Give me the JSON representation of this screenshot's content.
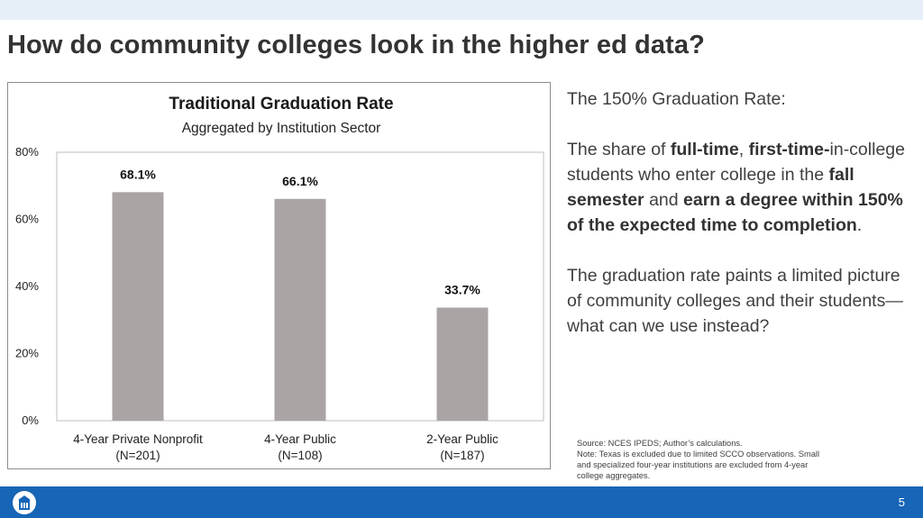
{
  "slide": {
    "title": "How do community colleges look in the higher ed data?",
    "page_number": "5"
  },
  "chart_data": {
    "type": "bar",
    "title": "Traditional Graduation Rate",
    "subtitle": "Aggregated by Institution Sector",
    "categories": [
      [
        "4-Year Private Nonprofit",
        "(N=201)"
      ],
      [
        "4-Year Public",
        "(N=108)"
      ],
      [
        "2-Year Public",
        "(N=187)"
      ]
    ],
    "values": [
      68.1,
      66.1,
      33.7
    ],
    "data_labels": [
      "68.1%",
      "66.1%",
      "33.7%"
    ],
    "yticks": [
      0,
      20,
      40,
      60,
      80
    ],
    "ytick_labels": [
      "0%",
      "20%",
      "40%",
      "60%",
      "80%"
    ],
    "ylim": [
      0,
      80
    ],
    "bar_color": "#aaa4a5",
    "grid": false,
    "legend": "none"
  },
  "side_panel": {
    "heading": "The 150% Graduation Rate:",
    "def": {
      "t1": "The share of ",
      "b1": "full-time",
      "t2": ", ",
      "b2": "first-time-",
      "t3": "in-college students who enter college in the ",
      "b3": "fall semester",
      "t4": " and ",
      "b4": "earn a degree within 150% of the expected time to completion",
      "t5": "."
    },
    "para2": "The graduation rate paints a limited picture of community colleges and their students—what can we use instead?"
  },
  "source_note": {
    "line1": "Source: NCES IPEDS; Author’s calculations.",
    "line2": "Note: Texas is excluded due to  limited SCCO observations. Small",
    "line3": "and specialized four-year institutions are excluded from 4-year",
    "line4": "college aggregates."
  },
  "footer": {
    "logo_icon": "building-logo-icon",
    "background": "#1765b6"
  }
}
